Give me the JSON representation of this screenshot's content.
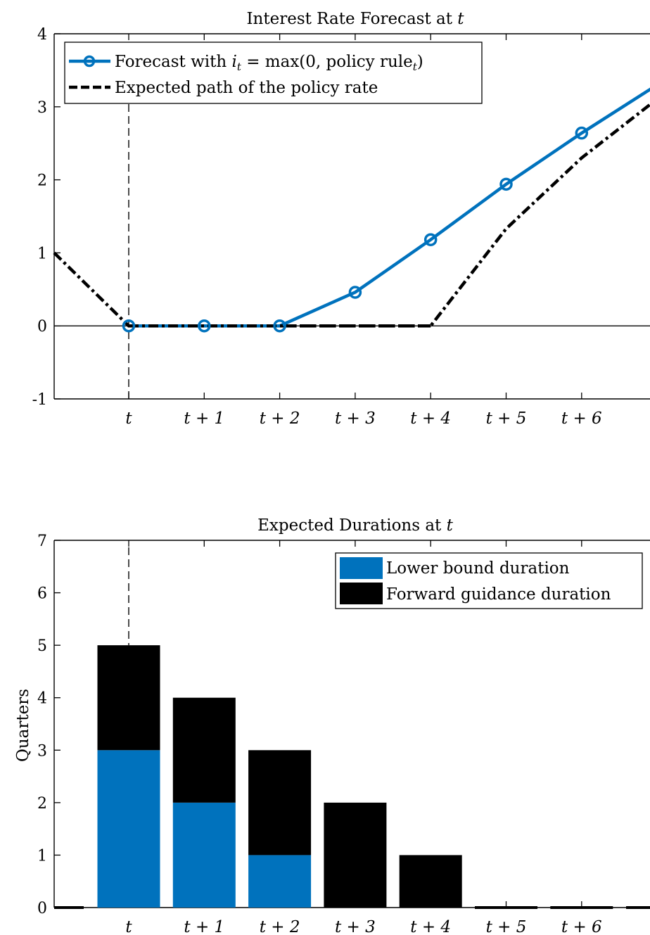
{
  "chart_data": [
    {
      "type": "line",
      "title": "Interest Rate Forecast at t",
      "xlabel": "",
      "ylabel": "",
      "ylim": [
        -1,
        4
      ],
      "yticks": [
        "-1",
        "0",
        "1",
        "2",
        "3",
        "4"
      ],
      "categories": [
        "t",
        "t + 1",
        "t + 2",
        "t + 3",
        "t + 4",
        "t + 5",
        "t + 6"
      ],
      "grid": false,
      "legend_position": "top-left",
      "reference_line": {
        "y": 0,
        "color": "#000000"
      },
      "event_marker": {
        "x": "t",
        "style": "dashed"
      },
      "series": [
        {
          "name": "Forecast with i_t = max(0, policy rule_t)",
          "color": "#0072BD",
          "style": "solid-circles",
          "points": [
            {
              "x": 0,
              "y": 0
            },
            {
              "x": 1,
              "y": 0
            },
            {
              "x": 2,
              "y": 0
            },
            {
              "x": 3,
              "y": 0.46
            },
            {
              "x": 4,
              "y": 1.18
            },
            {
              "x": 5,
              "y": 1.94
            },
            {
              "x": 6,
              "y": 2.64
            },
            {
              "x": 7,
              "y": 3.3
            }
          ]
        },
        {
          "name": "Expected path of the policy rate",
          "color": "#000000",
          "style": "dash-dot",
          "points": [
            {
              "x": -1,
              "y": 1.0
            },
            {
              "x": 0,
              "y": 0
            },
            {
              "x": 1,
              "y": 0
            },
            {
              "x": 2,
              "y": 0
            },
            {
              "x": 3,
              "y": 0
            },
            {
              "x": 4,
              "y": 0
            },
            {
              "x": 5,
              "y": 1.33
            },
            {
              "x": 6,
              "y": 2.3
            },
            {
              "x": 7,
              "y": 3.03
            }
          ]
        }
      ],
      "legend": [
        {
          "label_prefix": "Forecast with ",
          "label_math": "i",
          "label_sub": "t",
          "label_mid": " = max(0, policy rule",
          "label_sub2": "t",
          "label_suffix": ")"
        },
        {
          "label": "Expected path of the policy rate"
        }
      ]
    },
    {
      "type": "bar",
      "stacked": true,
      "title": "Expected Durations at t",
      "xlabel": "",
      "ylabel": "Quarters",
      "ylim": [
        0,
        7
      ],
      "yticks": [
        "0",
        "1",
        "2",
        "3",
        "4",
        "5",
        "6",
        "7"
      ],
      "categories": [
        "t",
        "t + 1",
        "t + 2",
        "t + 3",
        "t + 4",
        "t + 5",
        "t + 6"
      ],
      "grid": false,
      "legend_position": "top-right",
      "event_marker": {
        "x": "t",
        "style": "dashed"
      },
      "series": [
        {
          "name": "Lower bound duration",
          "color": "#0072BD",
          "values": [
            3,
            2,
            1,
            0,
            0,
            0,
            0
          ]
        },
        {
          "name": "Forward guidance duration",
          "color": "#000000",
          "values": [
            2,
            2,
            2,
            2,
            1,
            0,
            0
          ]
        }
      ]
    }
  ]
}
